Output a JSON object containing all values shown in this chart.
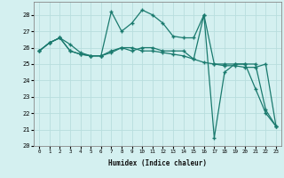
{
  "xlabel": "Humidex (Indice chaleur)",
  "bg_color": "#d4f0f0",
  "grid_color": "#b8dede",
  "line_color": "#1a7a6e",
  "xlim": [
    -0.5,
    23.5
  ],
  "ylim": [
    20,
    28.8
  ],
  "yticks": [
    20,
    21,
    22,
    23,
    24,
    25,
    26,
    27,
    28
  ],
  "xticks": [
    0,
    1,
    2,
    3,
    4,
    5,
    6,
    7,
    8,
    9,
    10,
    11,
    12,
    13,
    14,
    15,
    16,
    17,
    18,
    19,
    20,
    21,
    22,
    23
  ],
  "series1_x": [
    0,
    1,
    2,
    3,
    4,
    5,
    6,
    7,
    8,
    9,
    10,
    11,
    12,
    13,
    14,
    15,
    16,
    17,
    18,
    19,
    20,
    21,
    22,
    23
  ],
  "series1_y": [
    25.8,
    26.3,
    26.6,
    26.2,
    25.7,
    25.5,
    25.5,
    25.7,
    26.0,
    26.0,
    25.8,
    25.8,
    25.7,
    25.6,
    25.5,
    25.3,
    25.1,
    25.0,
    24.9,
    24.9,
    24.8,
    24.8,
    25.0,
    21.2
  ],
  "series2_x": [
    0,
    1,
    2,
    3,
    4,
    5,
    6,
    7,
    8,
    9,
    10,
    11,
    12,
    13,
    14,
    15,
    16,
    17,
    18,
    19,
    20,
    21,
    22,
    23
  ],
  "series2_y": [
    25.8,
    26.3,
    26.6,
    25.8,
    25.6,
    25.5,
    25.5,
    28.2,
    27.0,
    27.5,
    28.3,
    28.0,
    27.5,
    26.7,
    26.6,
    26.6,
    28.0,
    25.0,
    25.0,
    25.0,
    25.0,
    23.5,
    22.0,
    21.2
  ],
  "series3_x": [
    0,
    1,
    2,
    3,
    4,
    5,
    6,
    7,
    8,
    9,
    10,
    11,
    12,
    13,
    14,
    15,
    16,
    17,
    18,
    19,
    20,
    21,
    22,
    23
  ],
  "series3_y": [
    25.8,
    26.3,
    26.6,
    25.8,
    25.6,
    25.5,
    25.5,
    25.8,
    26.0,
    25.8,
    26.0,
    26.0,
    25.8,
    25.8,
    25.8,
    25.3,
    28.0,
    20.5,
    24.5,
    25.0,
    25.0,
    25.0,
    22.2,
    21.2
  ]
}
